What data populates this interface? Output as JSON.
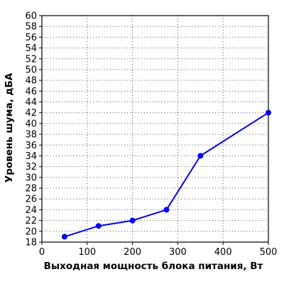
{
  "chart_data": {
    "type": "line",
    "title": "",
    "xlabel": "Выходная мощность блока питания, Вт",
    "ylabel": "Уровень шума, дБА",
    "xlim": [
      0,
      500
    ],
    "ylim": [
      18,
      60
    ],
    "x_ticks": [
      "0",
      "100",
      "200",
      "300",
      "400",
      "500"
    ],
    "y_ticks": [
      "18",
      "20",
      "22",
      "24",
      "26",
      "28",
      "30",
      "32",
      "34",
      "36",
      "38",
      "40",
      "42",
      "44",
      "46",
      "48",
      "50",
      "52",
      "54",
      "56",
      "58",
      "60"
    ],
    "grid": true,
    "series": [
      {
        "color": "#0000ee",
        "points": [
          {
            "x": 50,
            "y": 19
          },
          {
            "x": 125,
            "y": 21
          },
          {
            "x": 200,
            "y": 22
          },
          {
            "x": 275,
            "y": 24
          },
          {
            "x": 350,
            "y": 34
          },
          {
            "x": 500,
            "y": 42
          }
        ]
      }
    ]
  }
}
